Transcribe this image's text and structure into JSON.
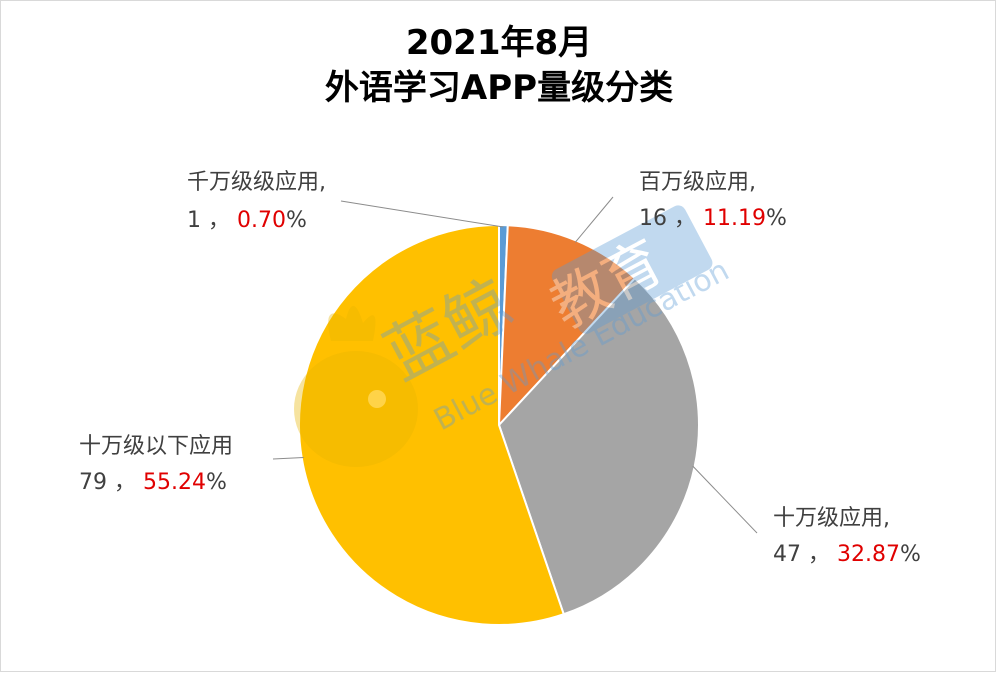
{
  "chart_data": {
    "type": "pie",
    "title": [
      "2021年8月",
      "外语学习APP量级分类"
    ],
    "unit": "个",
    "slices": [
      {
        "label": "千万级级应用,",
        "value": 1,
        "percent_text": "0.70",
        "color": "#5b9bd5"
      },
      {
        "label": "百万级应用,",
        "value": 16,
        "percent_text": "11.19",
        "color": "#ed7d31"
      },
      {
        "label": "十万级应用,",
        "value": 47,
        "percent_text": "32.87",
        "color": "#a5a5a5"
      },
      {
        "label": "十万级以下应用",
        "value": 79,
        "percent_text": "55.24",
        "color": "#ffc000"
      }
    ],
    "separator": "，",
    "percent_sign": "%"
  },
  "watermark": {
    "brand": "蓝鲸",
    "tag": "教育",
    "english": "Blue Whale Education"
  }
}
